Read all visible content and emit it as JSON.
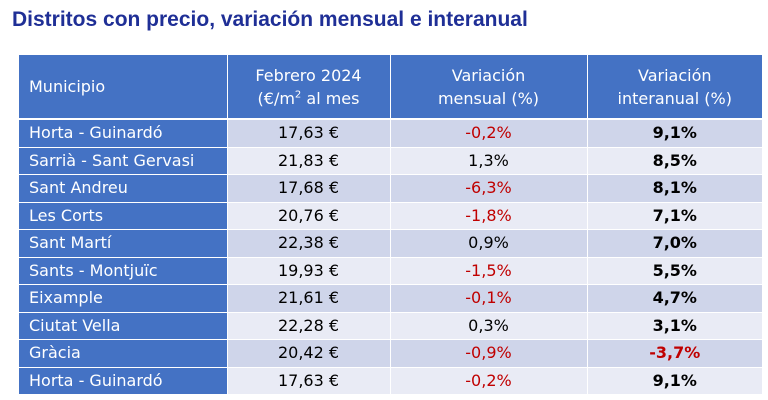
{
  "title": "Distritos con precio, variación mensual e interanual",
  "colors": {
    "title": "#1f2f96",
    "header_bg": "#4472c4",
    "row_odd": "#cfd5ea",
    "row_even": "#e9ebf5",
    "negative": "#c00000"
  },
  "header": {
    "municipio": "Municipio",
    "precio_line1": "Febrero 2024",
    "precio_line2_pre": "(€/m",
    "precio_sup": "2",
    "precio_line2_post": " al mes",
    "mensual_line1": "Variación",
    "mensual_line2": "mensual (%)",
    "interanual_line1": "Variación",
    "interanual_line2": "interanual (%)"
  },
  "rows": [
    {
      "municipio": "Horta - Guinardó",
      "precio": "17,63 €",
      "mensual": "-0,2%",
      "interanual": "9,1%"
    },
    {
      "municipio": "Sarrià - Sant Gervasi",
      "precio": "21,83 €",
      "mensual": "1,3%",
      "interanual": "8,5%"
    },
    {
      "municipio": "Sant Andreu",
      "precio": "17,68 €",
      "mensual": "-6,3%",
      "interanual": "8,1%"
    },
    {
      "municipio": "Les Corts",
      "precio": "20,76 €",
      "mensual": "-1,8%",
      "interanual": "7,1%"
    },
    {
      "municipio": "Sant Martí",
      "precio": "22,38 €",
      "mensual": "0,9%",
      "interanual": "7,0%"
    },
    {
      "municipio": "Sants - Montjuïc",
      "precio": "19,93 €",
      "mensual": "-1,5%",
      "interanual": "5,5%"
    },
    {
      "municipio": "Eixample",
      "precio": "21,61 €",
      "mensual": "-0,1%",
      "interanual": "4,7%"
    },
    {
      "municipio": "Ciutat Vella",
      "precio": "22,28 €",
      "mensual": "0,3%",
      "interanual": "3,1%"
    },
    {
      "municipio": "Gràcia",
      "precio": "20,42 €",
      "mensual": "-0,9%",
      "interanual": "-3,7%"
    },
    {
      "municipio": "Horta - Guinardó",
      "precio": "17,63 €",
      "mensual": "-0,2%",
      "interanual": "9,1%"
    }
  ]
}
